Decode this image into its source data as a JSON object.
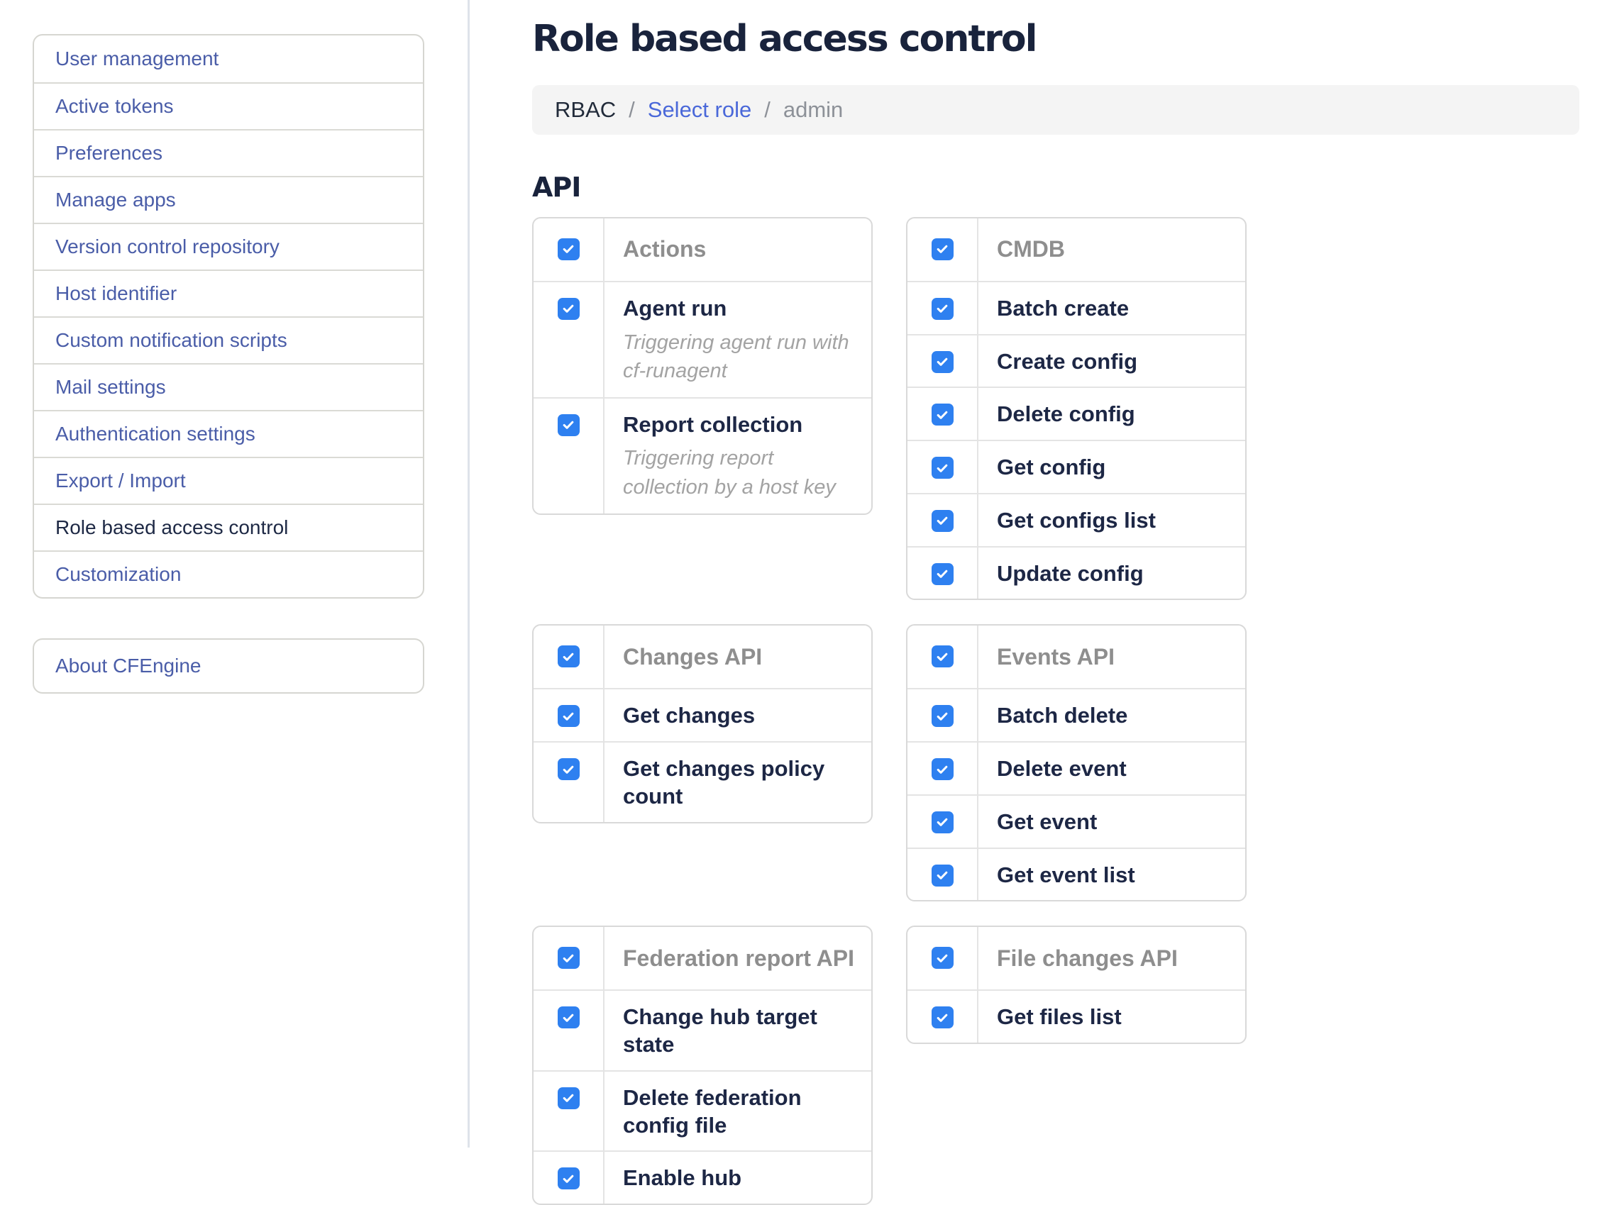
{
  "colors": {
    "accent_checkbox": "#2e80f0",
    "link_blue": "#4a68d9",
    "sidebar_link": "#4a5da8",
    "active_text": "#1e2945",
    "title_text": "#19233c",
    "group_header_text": "#8e8e8e",
    "breadcrumb_bg": "#f4f4f4"
  },
  "sidebar": {
    "items": [
      {
        "label": "User management",
        "active": false
      },
      {
        "label": "Active tokens",
        "active": false
      },
      {
        "label": "Preferences",
        "active": false
      },
      {
        "label": "Manage apps",
        "active": false
      },
      {
        "label": "Version control repository",
        "active": false
      },
      {
        "label": "Host identifier",
        "active": false
      },
      {
        "label": "Custom notification scripts",
        "active": false
      },
      {
        "label": "Mail settings",
        "active": false
      },
      {
        "label": "Authentication settings",
        "active": false
      },
      {
        "label": "Export / Import",
        "active": false
      },
      {
        "label": "Role based access control",
        "active": true
      },
      {
        "label": "Customization",
        "active": false
      }
    ],
    "about_label": "About CFEngine"
  },
  "header": {
    "title": "Role based access control",
    "breadcrumb": {
      "separator": "/",
      "items": [
        {
          "label": "RBAC",
          "type": "plain"
        },
        {
          "label": "Select role",
          "type": "link"
        },
        {
          "label": "admin",
          "type": "muted"
        }
      ]
    }
  },
  "api": {
    "heading": "API",
    "rows": [
      [
        {
          "name": "Actions",
          "checked": true,
          "items": [
            {
              "label": "Agent run",
              "desc": "Triggering agent run with cf-runagent",
              "checked": true
            },
            {
              "label": "Report collection",
              "desc": "Triggering report collection by a host key",
              "checked": true
            }
          ]
        },
        {
          "name": "CMDB",
          "checked": true,
          "items": [
            {
              "label": "Batch create",
              "checked": true
            },
            {
              "label": "Create config",
              "checked": true
            },
            {
              "label": "Delete config",
              "checked": true
            },
            {
              "label": "Get config",
              "checked": true
            },
            {
              "label": "Get configs list",
              "checked": true
            },
            {
              "label": "Update config",
              "checked": true
            }
          ]
        }
      ],
      [
        {
          "name": "Changes API",
          "checked": true,
          "items": [
            {
              "label": "Get changes",
              "checked": true
            },
            {
              "label": "Get changes policy count",
              "checked": true
            }
          ]
        },
        {
          "name": "Events API",
          "checked": true,
          "items": [
            {
              "label": "Batch delete",
              "checked": true
            },
            {
              "label": "Delete event",
              "checked": true
            },
            {
              "label": "Get event",
              "checked": true
            },
            {
              "label": "Get event list",
              "checked": true
            }
          ]
        }
      ],
      [
        {
          "name": "Federation report API",
          "checked": true,
          "items": [
            {
              "label": "Change hub target state",
              "checked": true
            },
            {
              "label": "Delete federation config file",
              "checked": true
            },
            {
              "label": "Enable hub",
              "checked": true
            }
          ]
        },
        {
          "name": "File changes API",
          "checked": true,
          "items": [
            {
              "label": "Get files list",
              "checked": true
            }
          ]
        }
      ]
    ]
  }
}
